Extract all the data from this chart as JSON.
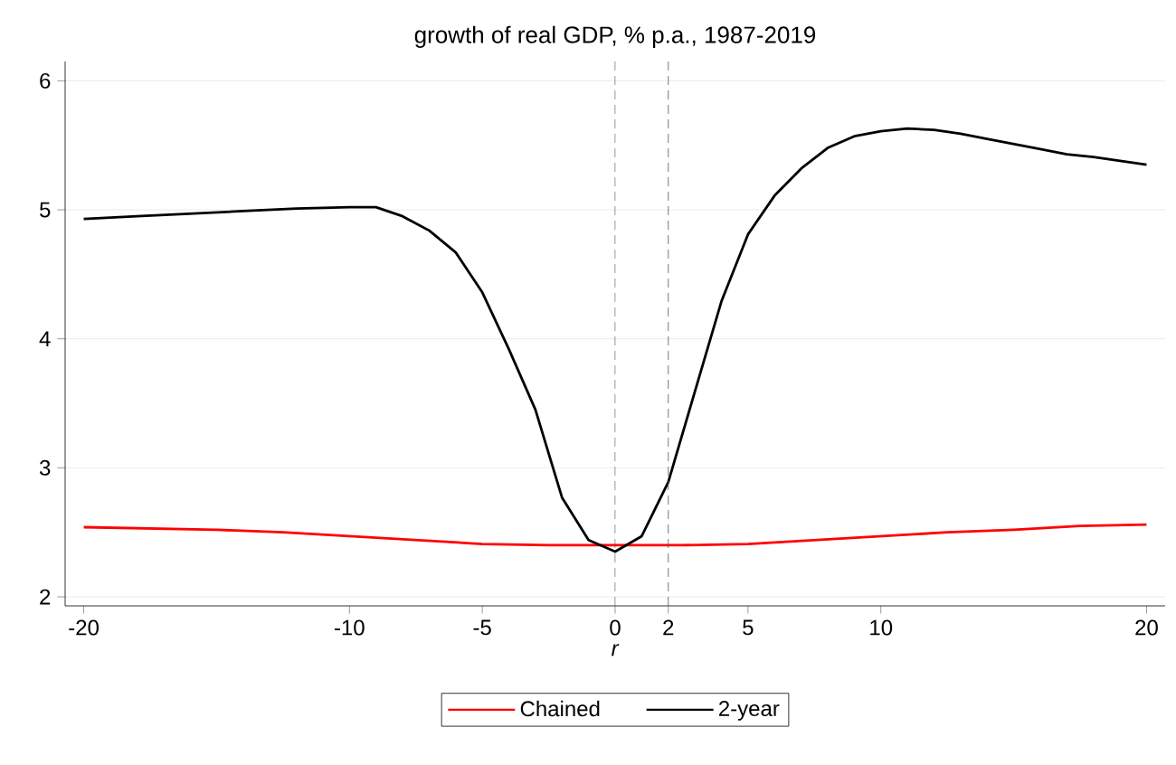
{
  "chart_data": {
    "type": "line",
    "title": "growth of real GDP, % p.a., 1987-2019",
    "xlabel": "*r*",
    "xlim": [
      -20.7,
      20.7
    ],
    "ylim": [
      1.93,
      6.15
    ],
    "xticks": [
      -20,
      -10,
      -5,
      0,
      2,
      5,
      10,
      20
    ],
    "yticks": [
      2,
      3,
      4,
      5,
      6
    ],
    "grid": "y",
    "legend": "bottom",
    "line_style": "solid",
    "marker": "none",
    "ref_lines": [
      {
        "axis": "x",
        "value": 0,
        "color": "#555555",
        "line_style": "dashed"
      },
      {
        "axis": "x",
        "value": 2,
        "color": "#555555",
        "line_style": "dashed"
      }
    ],
    "series": [
      {
        "name": "Chained",
        "color": "#ff0000",
        "x": [
          -20,
          -17.5,
          -15,
          -12.5,
          -10,
          -7.5,
          -5,
          -2.5,
          0,
          2.5,
          5,
          7.5,
          10,
          12.5,
          15,
          17.5,
          20
        ],
        "values": [
          2.54,
          2.53,
          2.52,
          2.5,
          2.47,
          2.44,
          2.41,
          2.4,
          2.4,
          2.4,
          2.41,
          2.44,
          2.47,
          2.5,
          2.52,
          2.55,
          2.56
        ]
      },
      {
        "name": "2-year",
        "color": "#000000",
        "x": [
          -20,
          -18,
          -16,
          -14,
          -12,
          -10,
          -9,
          -8,
          -7,
          -6,
          -5,
          -4,
          -3,
          -2,
          -1,
          0,
          1,
          2,
          3,
          4,
          5,
          6,
          7,
          8,
          9,
          10,
          11,
          12,
          13,
          14,
          15,
          16,
          17,
          18,
          19,
          20
        ],
        "values": [
          4.93,
          4.95,
          4.97,
          4.99,
          5.01,
          5.02,
          5.02,
          4.95,
          4.84,
          4.67,
          4.36,
          3.92,
          3.45,
          2.77,
          2.44,
          2.35,
          2.47,
          2.89,
          3.59,
          4.29,
          4.81,
          5.11,
          5.32,
          5.48,
          5.57,
          5.61,
          5.63,
          5.62,
          5.59,
          5.55,
          5.51,
          5.47,
          5.43,
          5.41,
          5.38,
          5.35
        ]
      }
    ]
  }
}
